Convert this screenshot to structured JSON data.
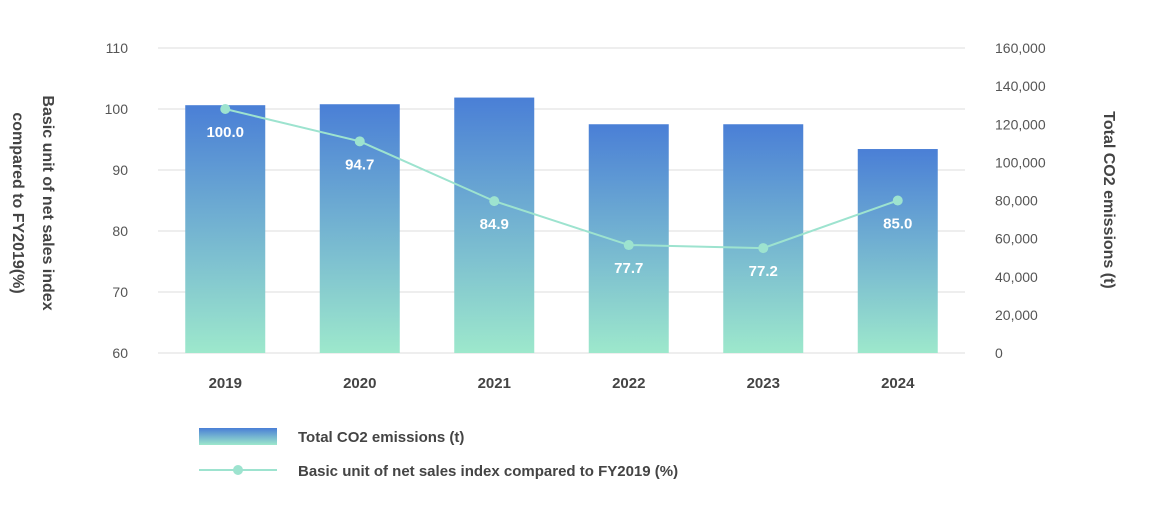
{
  "chart_data": {
    "type": "bar",
    "categories": [
      "2019",
      "2020",
      "2021",
      "2022",
      "2023",
      "2024"
    ],
    "series": [
      {
        "name": "Total CO2 emissions (t)",
        "type": "bar",
        "axis": "right",
        "values": [
          130000,
          130500,
          134000,
          120000,
          120000,
          107000
        ]
      },
      {
        "name": "Basic unit of net sales index compared to FY2019 (%)",
        "type": "line",
        "axis": "left",
        "values": [
          100.0,
          94.7,
          84.9,
          77.7,
          77.2,
          85.0
        ],
        "labels": [
          "100.0",
          "94.7",
          "84.9",
          "77.7",
          "77.2",
          "85.0"
        ]
      }
    ],
    "y_left": {
      "title_line1": "Basic unit of net sales index",
      "title_line2": "compared to FY2019(%)",
      "range": [
        60,
        110
      ],
      "ticks": [
        "60",
        "70",
        "80",
        "90",
        "100",
        "110"
      ]
    },
    "y_right": {
      "title": "Total CO2 emissions (t)",
      "range": [
        0,
        160000
      ],
      "ticks": [
        "0",
        "20,000",
        "40,000",
        "60,000",
        "80,000",
        "100,000",
        "120,000",
        "140,000",
        "160,000"
      ]
    },
    "grid": true,
    "legend_position": "bottom-left",
    "colors": {
      "bar_top": "#4a7fd6",
      "bar_bottom": "#9de8cc",
      "line": "#9de3cf",
      "point": "#9de3cf",
      "grid": "#dddddd",
      "data_label": "#ffffff"
    }
  }
}
